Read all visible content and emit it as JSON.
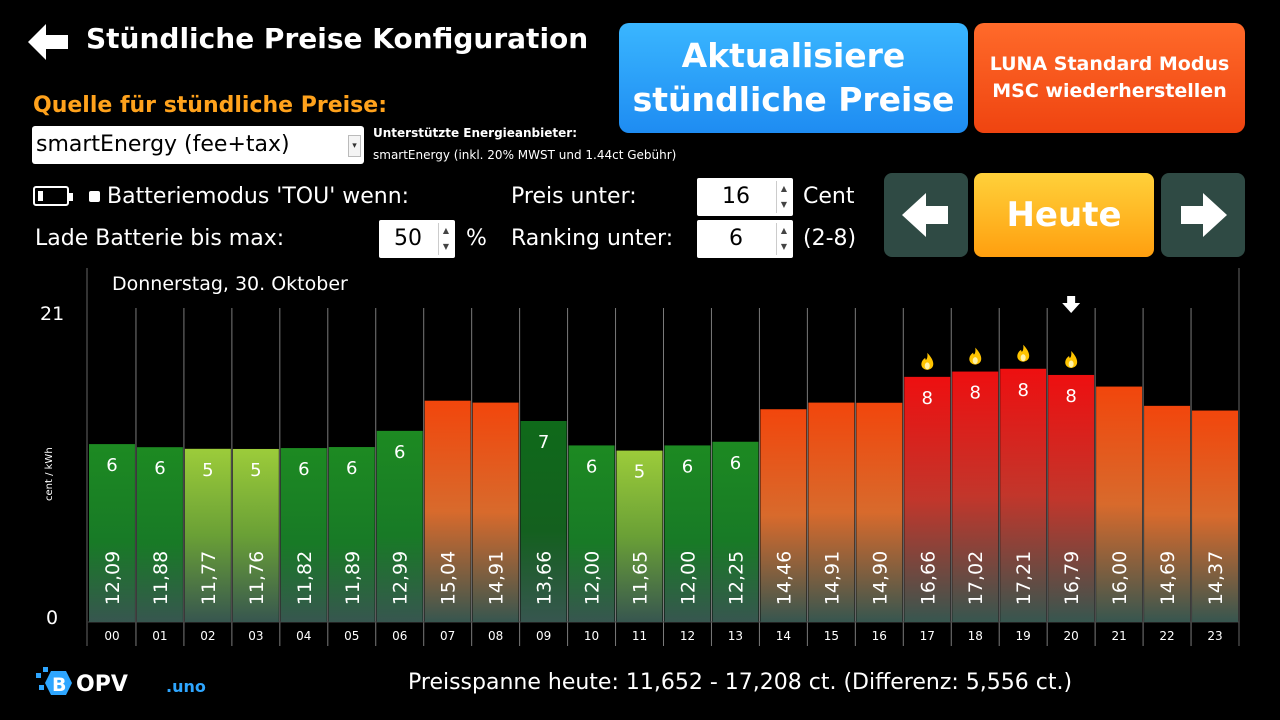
{
  "header": {
    "title": "Stündliche Preise Konfiguration",
    "update_button": [
      "Aktualisiere",
      "stündliche Preise"
    ],
    "luna_button": [
      "LUNA Standard Modus",
      "MSC wiederherstellen"
    ]
  },
  "source": {
    "label": "Quelle für stündliche Preise:",
    "selected": "smartEnergy (fee+tax)",
    "providers_title": "Unterstützte Energieanbieter:",
    "providers_text": "smartEnergy (inkl. 20% MWST und 1.44ct Gebühr)"
  },
  "settings": {
    "battery_mode_label": "Batteriemodus 'TOU' wenn:",
    "charge_label": "Lade Batterie bis max:",
    "charge_value": "50",
    "charge_unit": "%",
    "price_label": "Preis unter:",
    "price_value": "16",
    "price_unit": "Cent",
    "ranking_label": "Ranking unter:",
    "ranking_value": "6",
    "ranking_range": "(2-8)"
  },
  "nav": {
    "today_label": "Heute"
  },
  "logo_text": "BOPV.uno",
  "footer": {
    "price_span": "Preisspanne heute: 11,652 - 17,208 ct.  (Differenz: 5,556 ct.)"
  },
  "colors": {
    "orange_label": "#ffa21c",
    "blue_button": "#1e8cf2",
    "red_button": "#ef4410",
    "nav_button": "#2f4a44",
    "today_button": "#ffb41f"
  },
  "chart_data": {
    "type": "bar",
    "title": "Donnerstag, 30. Oktober",
    "ylabel": "cent / kWh",
    "ylim": [
      0,
      21
    ],
    "y_ticks": [
      "21",
      "0"
    ],
    "categories": [
      "00",
      "01",
      "02",
      "03",
      "04",
      "05",
      "06",
      "07",
      "08",
      "09",
      "10",
      "11",
      "12",
      "13",
      "14",
      "15",
      "16",
      "17",
      "18",
      "19",
      "20",
      "21",
      "22",
      "23"
    ],
    "values": [
      12.09,
      11.88,
      11.77,
      11.76,
      11.82,
      11.89,
      12.99,
      15.04,
      14.91,
      13.66,
      12.0,
      11.65,
      12.0,
      12.25,
      14.46,
      14.91,
      14.9,
      16.66,
      17.02,
      17.21,
      16.79,
      16.0,
      14.69,
      14.37
    ],
    "value_labels": [
      "12,09",
      "11,88",
      "11,77",
      "11,76",
      "11,82",
      "11,89",
      "12,99",
      "15,04",
      "14,91",
      "13,66",
      "12,00",
      "11,65",
      "12,00",
      "12,25",
      "14,46",
      "14,91",
      "14,90",
      "16,66",
      "17,02",
      "17,21",
      "16,79",
      "16,00",
      "14,69",
      "14,37"
    ],
    "ranks": [
      "6",
      "6",
      "5",
      "5",
      "6",
      "6",
      "6",
      "",
      "",
      "7",
      "6",
      "5",
      "6",
      "6",
      "",
      "",
      "",
      "8",
      "8",
      "8",
      "8",
      "",
      "",
      ""
    ],
    "flame_hours": [
      17,
      18,
      19,
      20
    ],
    "current_hour_marker": 20,
    "grid": true
  }
}
